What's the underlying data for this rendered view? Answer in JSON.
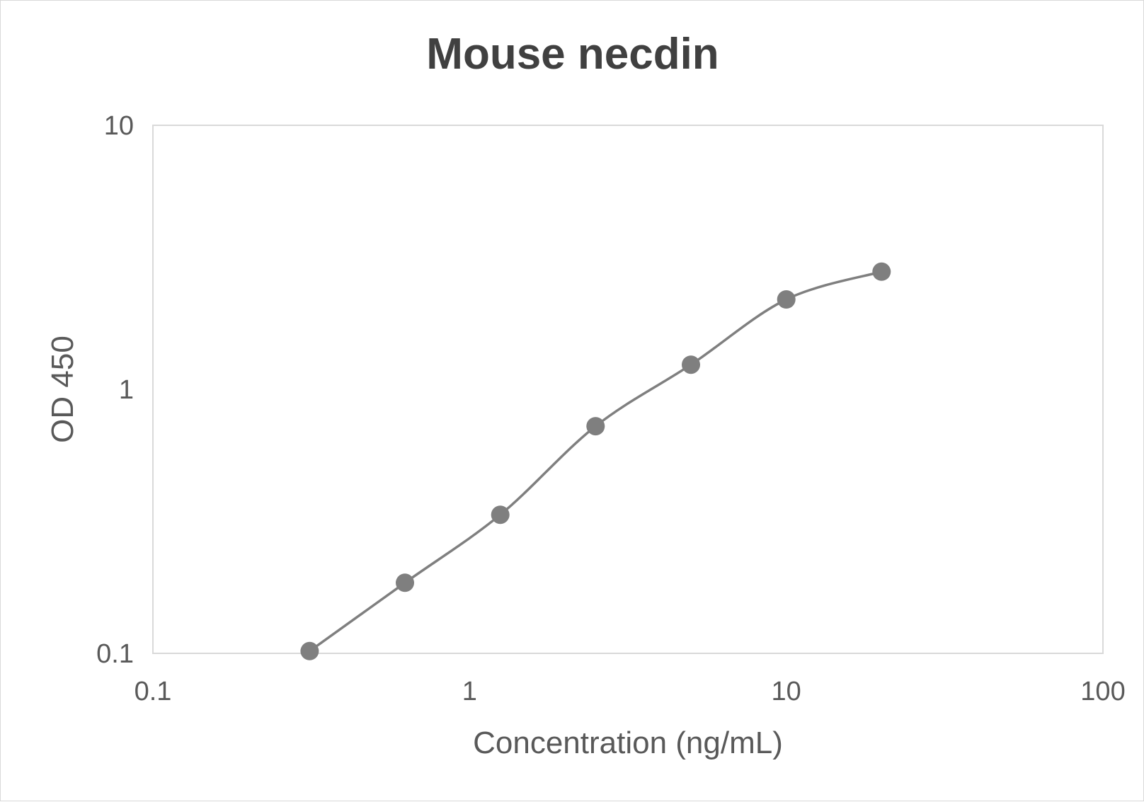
{
  "chart_data": {
    "type": "line",
    "title": "Mouse necdin",
    "xlabel": "Concentration (ng/mL)",
    "ylabel": "OD 450",
    "x_scale": "log",
    "y_scale": "log",
    "xlim": [
      0.1,
      100
    ],
    "ylim": [
      0.1,
      10
    ],
    "x_ticks": [
      "0.1",
      "1",
      "10",
      "100"
    ],
    "y_ticks": [
      "0.1",
      "1",
      "10"
    ],
    "grid": false,
    "legend": "none",
    "series": [
      {
        "color": "#7f7f7f",
        "x": [
          0.3125,
          0.625,
          1.25,
          2.5,
          5,
          10,
          20
        ],
        "y": [
          0.102,
          0.185,
          0.335,
          0.725,
          1.24,
          2.19,
          2.79
        ]
      }
    ]
  }
}
